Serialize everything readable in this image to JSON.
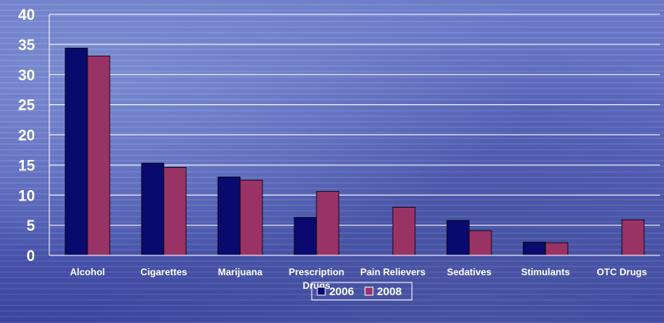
{
  "chart_data": {
    "type": "bar",
    "title": "",
    "xlabel": "",
    "ylabel": "",
    "ylim": [
      0,
      40
    ],
    "yticks": [
      "0",
      "5",
      "10",
      "15",
      "20",
      "25",
      "30",
      "35",
      "40"
    ],
    "grid": true,
    "legend_position": "bottom-center",
    "categories": [
      [
        "Alcohol"
      ],
      [
        "Cigarettes"
      ],
      [
        "Marijuana"
      ],
      [
        "Prescription",
        "Drugs"
      ],
      [
        "Pain Relievers"
      ],
      [
        "Sedatives"
      ],
      [
        "Stimulants"
      ],
      [
        "OTC Drugs"
      ]
    ],
    "series": [
      {
        "name": "2006",
        "color": "#0a0a6e",
        "values": [
          34.4,
          15.3,
          13.0,
          6.3,
          null,
          5.8,
          2.2,
          null
        ]
      },
      {
        "name": "2008",
        "color": "#993366",
        "values": [
          33.1,
          14.6,
          12.5,
          10.6,
          8.0,
          4.1,
          2.1,
          5.9
        ]
      }
    ]
  }
}
